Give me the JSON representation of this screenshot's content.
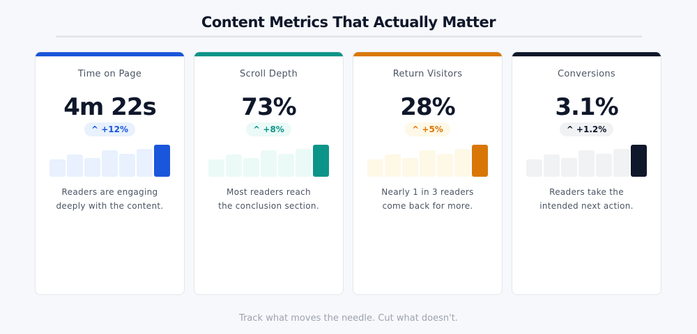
{
  "title": "Content Metrics That Actually Matter",
  "footer": "Track what moves the needle. Cut what doesn't.",
  "cards": [
    {
      "label": "Time on Page",
      "value": "4m 22s",
      "change": "^ +12%",
      "desc1": "Readers are engaging",
      "desc2": "deeply with the content.",
      "accent": "#1a56db",
      "tint": "#e8f1fd",
      "bars": [
        25,
        32,
        27,
        38,
        33,
        40,
        46
      ]
    },
    {
      "label": "Scroll Depth",
      "value": "73%",
      "change": "^ +8%",
      "desc1": "Most readers reach",
      "desc2": "the conclusion section.",
      "accent": "#0d9488",
      "tint": "#ebfaf7",
      "bars": [
        25,
        32,
        27,
        38,
        33,
        40,
        46
      ]
    },
    {
      "label": "Return Visitors",
      "value": "28%",
      "change": "^ +5%",
      "desc1": "Nearly 1 in 3 readers",
      "desc2": "come back for more.",
      "accent": "#d97706",
      "tint": "#fef8e7",
      "bars": [
        25,
        32,
        27,
        38,
        33,
        40,
        46
      ]
    },
    {
      "label": "Conversions",
      "value": "3.1%",
      "change": "^ +1.2%",
      "desc1": "Readers take the",
      "desc2": "intended next action.",
      "accent": "#0f172a",
      "tint": "#f1f2f4",
      "bars": [
        25,
        32,
        27,
        38,
        33,
        40,
        46
      ]
    }
  ]
}
